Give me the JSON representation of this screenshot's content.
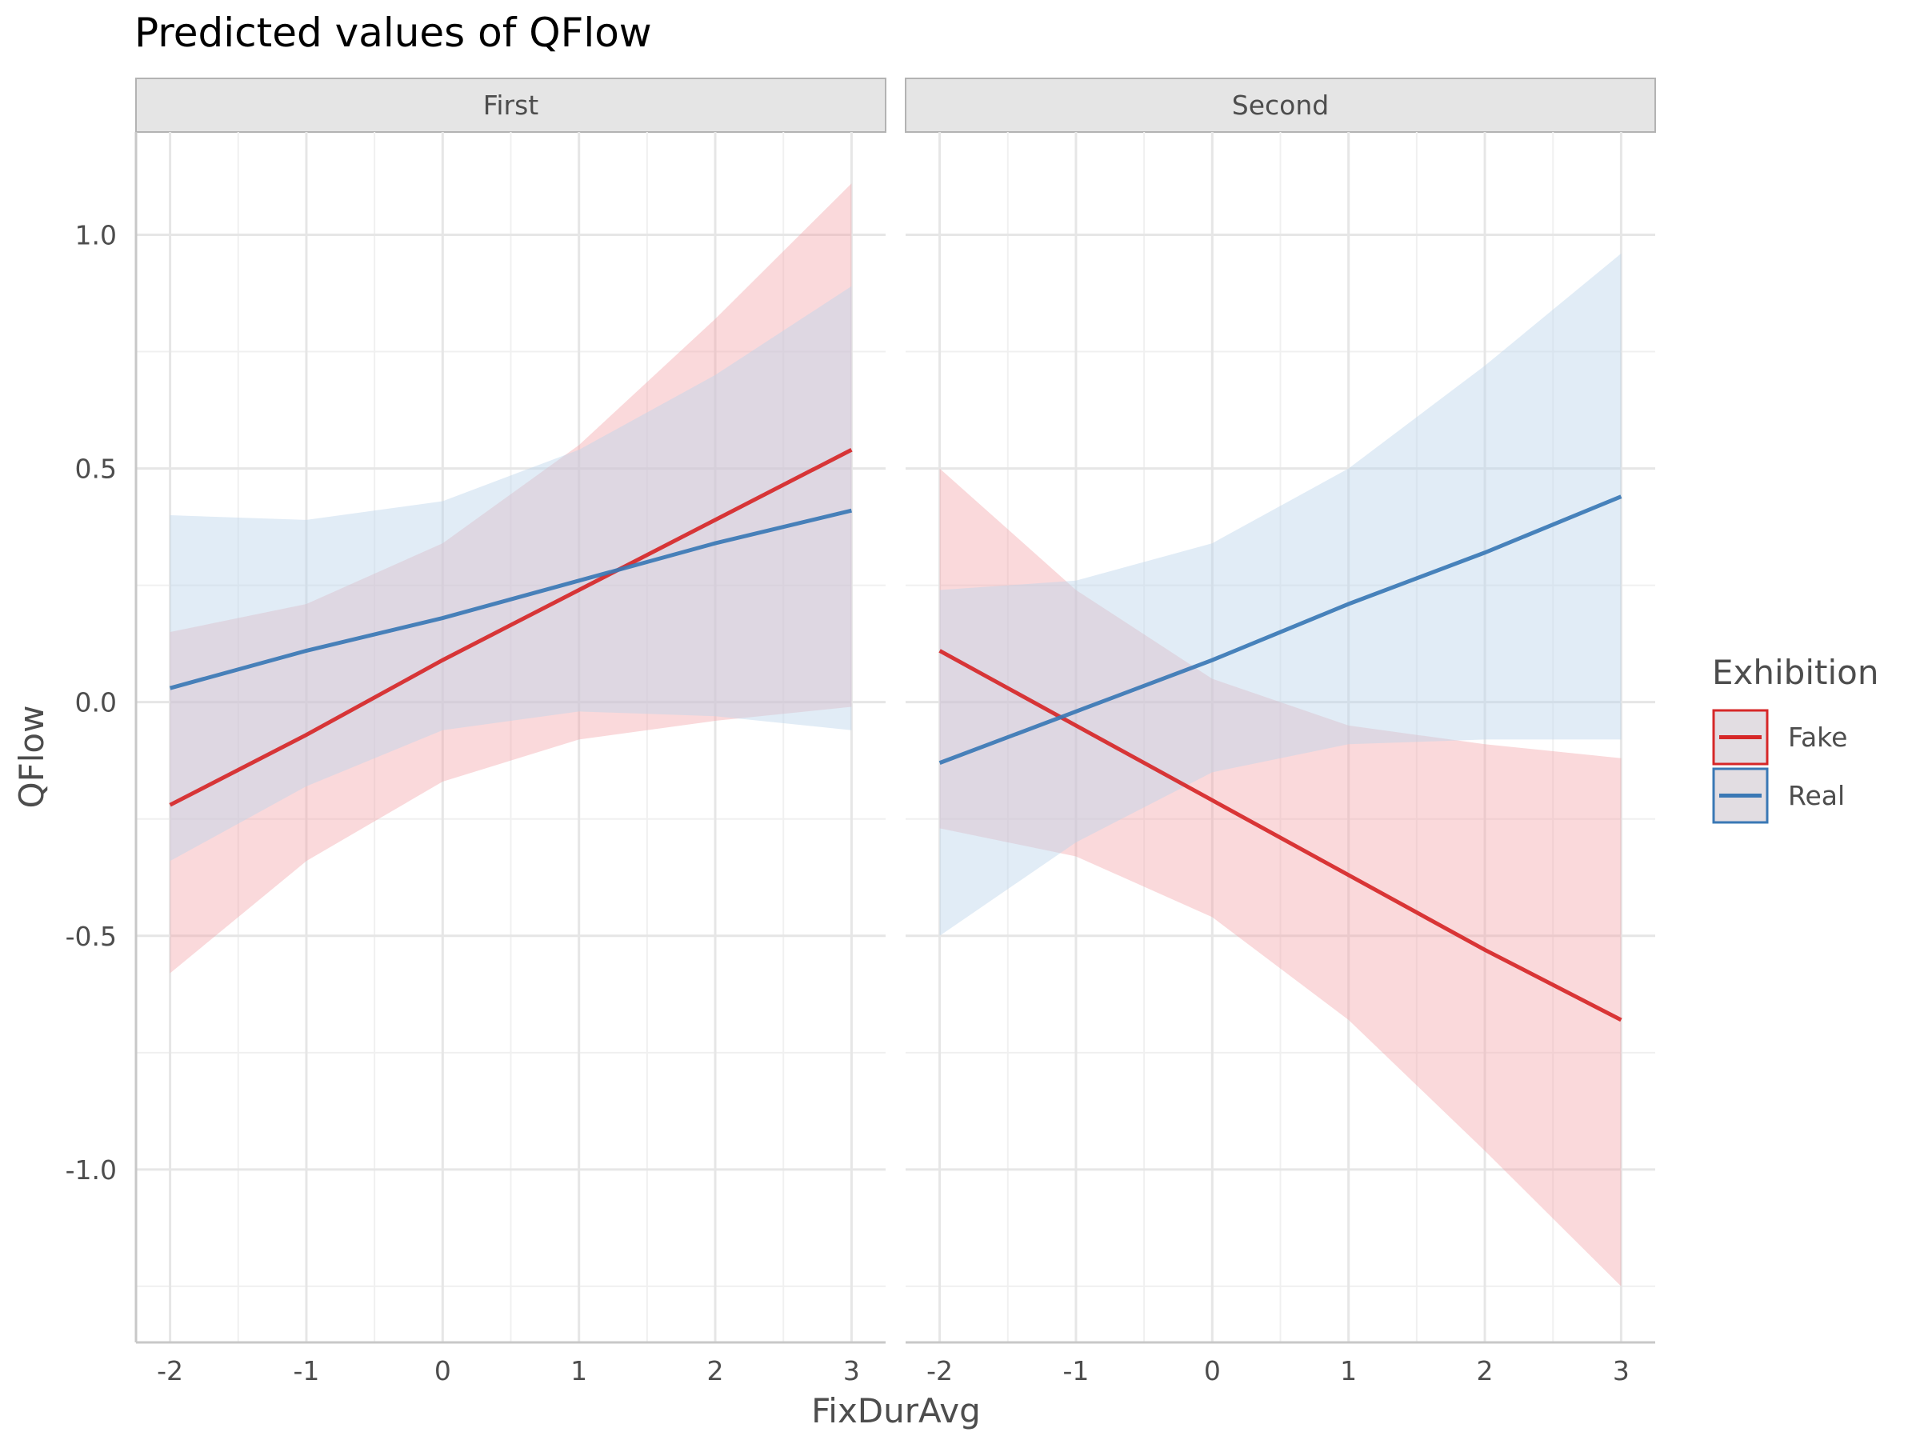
{
  "chart_data": {
    "type": "line",
    "title": "Predicted values of QFlow",
    "xlabel": "FixDurAvg",
    "ylabel": "QFlow",
    "x_ticks": [
      -2,
      -1,
      0,
      1,
      2,
      3
    ],
    "y_ticks": [
      1.0,
      0.5,
      0.0,
      -0.5,
      -1.0
    ],
    "y_tick_labels": [
      "1.0",
      "0.5",
      "0.0",
      "-0.5",
      "-1.0"
    ],
    "xlim": [
      -2.25,
      3.25
    ],
    "ylim": [
      -1.37,
      1.22
    ],
    "grid": true,
    "legend": {
      "title": "Exhibition",
      "placement": "right",
      "entries": [
        {
          "label": "Fake",
          "color": "#d62728"
        },
        {
          "label": "Real",
          "color": "#3a78b5"
        }
      ]
    },
    "colors": {
      "Fake": {
        "line": "#d62728",
        "fill": "#f4a5aa"
      },
      "Real": {
        "line": "#3a78b5",
        "fill": "#bcd5ea"
      }
    },
    "panels": [
      {
        "label": "First",
        "series": [
          {
            "name": "Fake",
            "x": [
              -2,
              -1,
              0,
              1,
              2,
              3
            ],
            "y": [
              -0.22,
              -0.07,
              0.09,
              0.24,
              0.39,
              0.54
            ],
            "lower": [
              -0.58,
              -0.34,
              -0.17,
              -0.08,
              -0.04,
              -0.01
            ],
            "upper": [
              0.15,
              0.21,
              0.34,
              0.55,
              0.82,
              1.11
            ]
          },
          {
            "name": "Real",
            "x": [
              -2,
              -1,
              0,
              1,
              2,
              3
            ],
            "y": [
              0.03,
              0.11,
              0.18,
              0.26,
              0.34,
              0.41
            ],
            "lower": [
              -0.34,
              -0.18,
              -0.06,
              -0.02,
              -0.03,
              -0.06
            ],
            "upper": [
              0.4,
              0.39,
              0.43,
              0.54,
              0.7,
              0.89
            ]
          }
        ]
      },
      {
        "label": "Second",
        "series": [
          {
            "name": "Fake",
            "x": [
              -2,
              -1,
              0,
              1,
              2,
              3
            ],
            "y": [
              0.11,
              -0.05,
              -0.21,
              -0.37,
              -0.53,
              -0.68
            ],
            "lower": [
              -0.27,
              -0.33,
              -0.46,
              -0.68,
              -0.96,
              -1.25
            ],
            "upper": [
              0.5,
              0.24,
              0.05,
              -0.05,
              -0.09,
              -0.12
            ]
          },
          {
            "name": "Real",
            "x": [
              -2,
              -1,
              0,
              1,
              2,
              3
            ],
            "y": [
              -0.13,
              -0.02,
              0.09,
              0.21,
              0.32,
              0.44
            ],
            "lower": [
              -0.5,
              -0.3,
              -0.15,
              -0.09,
              -0.08,
              -0.08
            ],
            "upper": [
              0.24,
              0.26,
              0.34,
              0.5,
              0.72,
              0.96
            ]
          }
        ]
      }
    ]
  }
}
